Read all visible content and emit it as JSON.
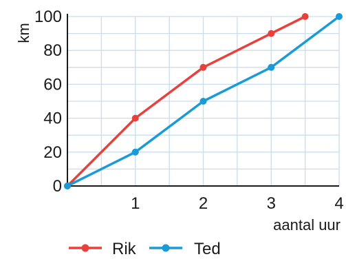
{
  "chart_data": {
    "type": "line",
    "title": "",
    "xlabel": "aantal uur",
    "ylabel": "km",
    "xlim": [
      0,
      4
    ],
    "ylim": [
      0,
      100
    ],
    "x_ticks": [
      "1",
      "2",
      "3",
      "4"
    ],
    "y_ticks": [
      "0",
      "20",
      "40",
      "60",
      "80",
      "100"
    ],
    "grid": true,
    "legend_position": "bottom",
    "series": [
      {
        "name": "Rik",
        "color": "#e8413c",
        "x": [
          0,
          1,
          2,
          3,
          3.5
        ],
        "y": [
          0,
          40,
          70,
          90,
          100
        ]
      },
      {
        "name": "Ted",
        "color": "#1a9ad6",
        "x": [
          0,
          1,
          2,
          3,
          4
        ],
        "y": [
          0,
          20,
          50,
          70,
          100
        ]
      }
    ]
  }
}
